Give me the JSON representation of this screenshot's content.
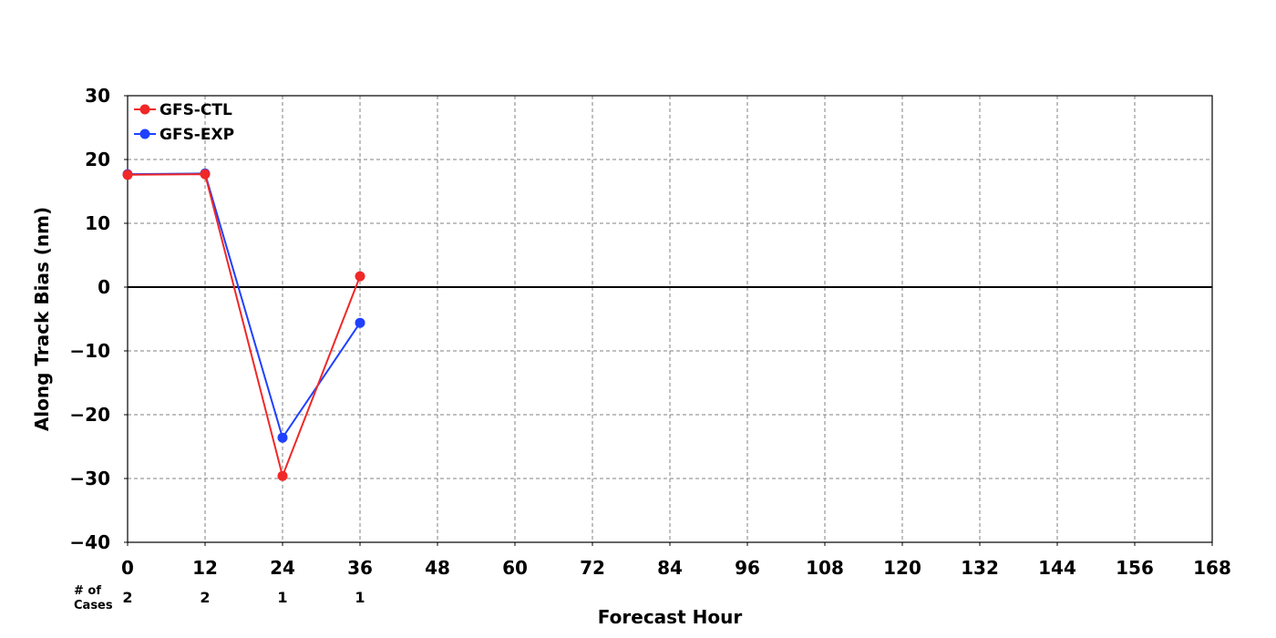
{
  "chart_data": {
    "type": "line",
    "xlabel": "Forecast Hour",
    "ylabel": "Along Track Bias (nm)",
    "xlim": [
      0,
      168
    ],
    "ylim": [
      -40,
      30
    ],
    "x_ticks": [
      0,
      12,
      24,
      36,
      48,
      60,
      72,
      84,
      96,
      108,
      120,
      132,
      144,
      156,
      168
    ],
    "y_ticks": [
      30,
      20,
      10,
      0,
      -10,
      -20,
      -30,
      -40
    ],
    "y_tick_labels": [
      "30",
      "20",
      "10",
      "0",
      "−10",
      "−20",
      "−30",
      "−40"
    ],
    "grid": true,
    "grid_style": "dashed",
    "zero_line": true,
    "legend_position": "top-left",
    "series": [
      {
        "name": "GFS-EXP",
        "color": "#2040ff",
        "x": [
          0,
          12,
          24,
          36
        ],
        "values": [
          17.7,
          17.8,
          -23.6,
          -5.6
        ]
      },
      {
        "name": "GFS-CTL",
        "color": "#f02828",
        "x": [
          0,
          12,
          24,
          36
        ],
        "values": [
          17.6,
          17.7,
          -29.6,
          1.7
        ]
      }
    ],
    "legend_order": [
      "GFS-CTL",
      "GFS-EXP"
    ],
    "cases_label_line1": "# of",
    "cases_label_line2": "Cases",
    "cases": {
      "x": [
        0,
        12,
        24,
        36
      ],
      "counts": [
        "2",
        "2",
        "1",
        "1"
      ]
    }
  }
}
